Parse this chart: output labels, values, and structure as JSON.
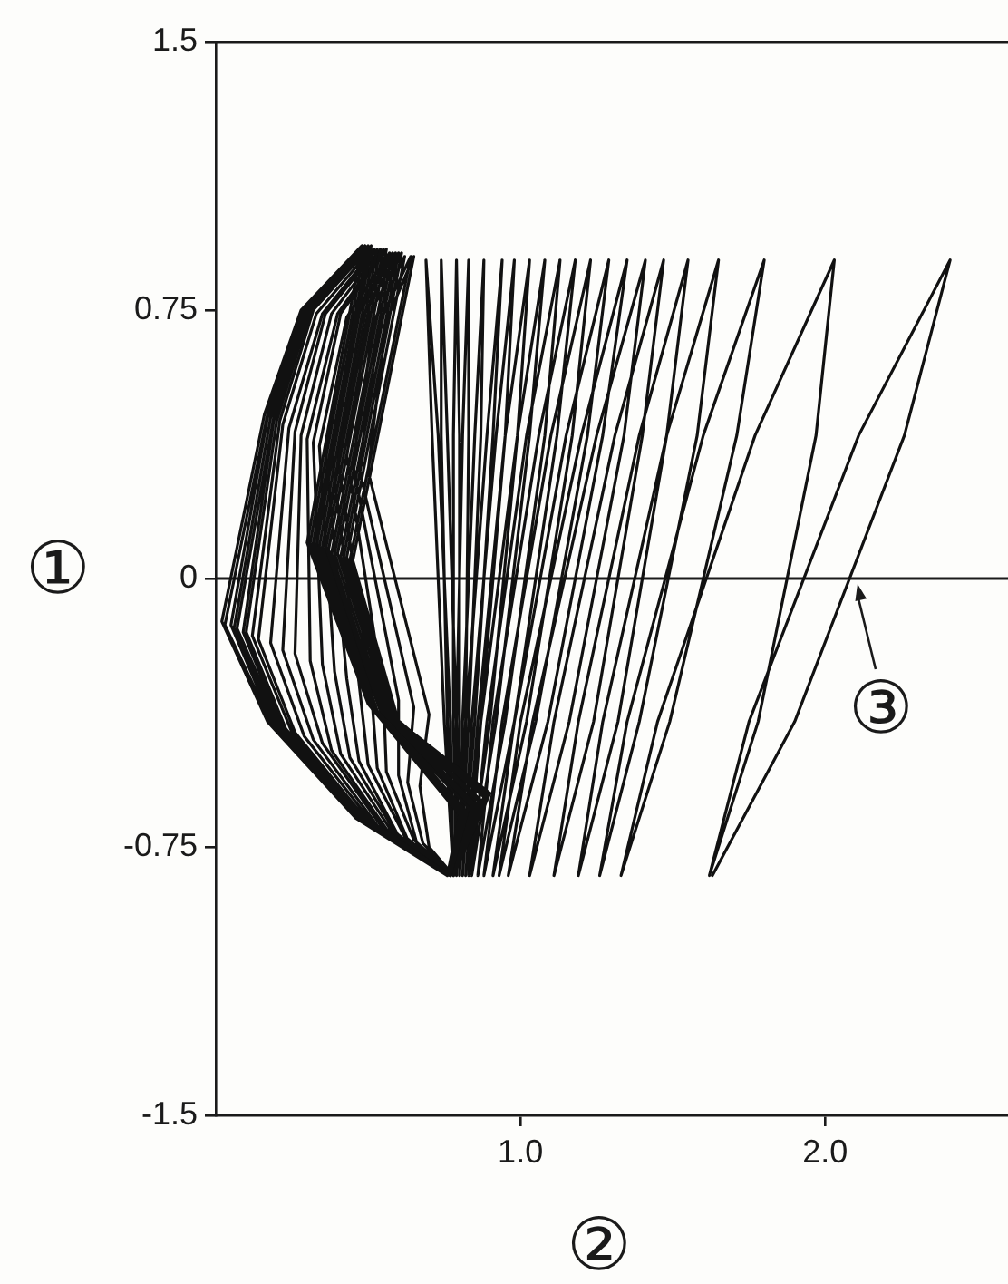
{
  "chart_data": {
    "type": "line",
    "xlabel": "②",
    "ylabel": "①",
    "annotations": [
      {
        "text": "③",
        "x": 2.1,
        "y": 0
      }
    ],
    "series": [
      {
        "color": "#111111",
        "x": [
          0.76,
          0.46,
          0.17,
          0.02,
          0.16,
          0.28,
          0.48,
          0.3,
          0.5,
          0.8,
          0.76,
          0.46,
          0.18,
          0.03,
          0.17,
          0.29,
          0.48,
          0.3,
          0.5,
          0.8,
          0.76,
          0.47,
          0.19,
          0.05,
          0.17,
          0.29,
          0.49,
          0.31,
          0.5,
          0.8,
          0.76,
          0.47,
          0.2,
          0.06,
          0.18,
          0.3,
          0.49,
          0.31,
          0.51,
          0.81,
          0.76,
          0.48,
          0.21,
          0.07,
          0.19,
          0.3,
          0.49,
          0.31,
          0.51,
          0.81,
          0.76,
          0.48,
          0.22,
          0.09,
          0.19,
          0.31,
          0.5,
          0.32,
          0.51,
          0.81,
          0.76,
          0.49,
          0.23,
          0.1,
          0.2,
          0.31,
          0.5,
          0.32,
          0.51,
          0.81,
          0.76,
          0.5,
          0.25,
          0.12,
          0.21,
          0.32,
          0.51,
          0.32,
          0.52,
          0.82,
          0.76,
          0.5,
          0.26,
          0.14,
          0.22,
          0.33,
          0.51,
          0.33,
          0.52,
          0.82,
          0.77,
          0.52,
          0.29,
          0.18,
          0.24,
          0.35,
          0.52,
          0.34,
          0.52,
          0.82,
          0.77,
          0.53,
          0.32,
          0.22,
          0.26,
          0.36,
          0.53,
          0.35,
          0.53,
          0.83,
          0.77
        ],
        "values": [
          -0.83,
          -0.67,
          -0.4,
          -0.12,
          0.46,
          0.75,
          0.93,
          0.1,
          -0.35,
          -0.66,
          -0.83,
          -0.67,
          -0.4,
          -0.13,
          0.46,
          0.75,
          0.93,
          0.1,
          -0.35,
          -0.66,
          -0.83,
          -0.67,
          -0.41,
          -0.13,
          0.45,
          0.75,
          0.93,
          0.1,
          -0.35,
          -0.66,
          -0.83,
          -0.67,
          -0.41,
          -0.14,
          0.45,
          0.75,
          0.93,
          0.1,
          -0.35,
          -0.66,
          -0.83,
          -0.68,
          -0.41,
          -0.14,
          0.45,
          0.75,
          0.93,
          0.1,
          -0.35,
          -0.66,
          -0.83,
          -0.68,
          -0.42,
          -0.15,
          0.44,
          0.75,
          0.93,
          0.1,
          -0.36,
          -0.65,
          -0.83,
          -0.68,
          -0.42,
          -0.15,
          0.44,
          0.75,
          0.93,
          0.09,
          -0.36,
          -0.65,
          -0.83,
          -0.68,
          -0.43,
          -0.16,
          0.44,
          0.75,
          0.93,
          0.09,
          -0.36,
          -0.65,
          -0.83,
          -0.68,
          -0.43,
          -0.17,
          0.43,
          0.74,
          0.92,
          0.09,
          -0.36,
          -0.65,
          -0.83,
          -0.69,
          -0.44,
          -0.18,
          0.42,
          0.74,
          0.92,
          0.09,
          -0.36,
          -0.65,
          -0.83,
          -0.69,
          -0.45,
          -0.2,
          0.41,
          0.74,
          0.92,
          0.09,
          -0.37,
          -0.64,
          -0.83
        ]
      },
      {
        "color": "#111111",
        "x": [
          0.77,
          0.55,
          0.35,
          0.26,
          0.28,
          0.38,
          0.54,
          0.35,
          0.54,
          0.84,
          0.77,
          0.56,
          0.38,
          0.31,
          0.3,
          0.4,
          0.55,
          0.36,
          0.54,
          0.84,
          0.77,
          0.58,
          0.41,
          0.35,
          0.32,
          0.41,
          0.56,
          0.37,
          0.55,
          0.85,
          0.77,
          0.59,
          0.44,
          0.39,
          0.34,
          0.43,
          0.57,
          0.38,
          0.55,
          0.85,
          0.77,
          0.6,
          0.47,
          0.43,
          0.36,
          0.45,
          0.58,
          0.39,
          0.56,
          0.86,
          0.77,
          0.62,
          0.5,
          0.47,
          0.38,
          0.46,
          0.59,
          0.4,
          0.57,
          0.87,
          0.77,
          0.63,
          0.53,
          0.51,
          0.4,
          0.48,
          0.6,
          0.41,
          0.57,
          0.87,
          0.78,
          0.65,
          0.56,
          0.55,
          0.43,
          0.5,
          0.61,
          0.42,
          0.58,
          0.88,
          0.78,
          0.66,
          0.6,
          0.6,
          0.45,
          0.52,
          0.62,
          0.43,
          0.59,
          0.89,
          0.78,
          0.68,
          0.63,
          0.65,
          0.47,
          0.54,
          0.64,
          0.44,
          0.59,
          0.89,
          0.78,
          0.7,
          0.67,
          0.7,
          0.5,
          0.56,
          0.65,
          0.45,
          0.6,
          0.9,
          0.78
        ],
        "values": [
          -0.83,
          -0.7,
          -0.46,
          -0.21,
          0.4,
          0.74,
          0.92,
          0.08,
          -0.37,
          -0.64,
          -0.83,
          -0.7,
          -0.48,
          -0.23,
          0.39,
          0.74,
          0.92,
          0.08,
          -0.37,
          -0.63,
          -0.83,
          -0.71,
          -0.49,
          -0.24,
          0.38,
          0.74,
          0.92,
          0.08,
          -0.37,
          -0.63,
          -0.83,
          -0.71,
          -0.5,
          -0.26,
          0.37,
          0.73,
          0.91,
          0.07,
          -0.38,
          -0.63,
          -0.83,
          -0.72,
          -0.51,
          -0.28,
          0.36,
          0.73,
          0.91,
          0.07,
          -0.38,
          -0.62,
          -0.83,
          -0.72,
          -0.52,
          -0.29,
          0.35,
          0.73,
          0.91,
          0.07,
          -0.38,
          -0.62,
          -0.83,
          -0.73,
          -0.53,
          -0.31,
          0.34,
          0.73,
          0.91,
          0.06,
          -0.39,
          -0.62,
          -0.83,
          -0.73,
          -0.54,
          -0.32,
          0.34,
          0.73,
          0.91,
          0.06,
          -0.39,
          -0.61,
          -0.83,
          -0.74,
          -0.55,
          -0.34,
          0.32,
          0.72,
          0.9,
          0.06,
          -0.39,
          -0.61,
          -0.83,
          -0.74,
          -0.57,
          -0.36,
          0.31,
          0.72,
          0.9,
          0.05,
          -0.4,
          -0.6,
          -0.83,
          -0.75,
          -0.58,
          -0.38,
          0.3,
          0.72,
          0.9,
          0.05,
          -0.4,
          -0.6,
          -0.83
        ]
      },
      {
        "color": "#111111",
        "x": [
          0.78,
          0.75,
          0.71,
          0.69,
          0.73,
          0.77,
          0.78,
          0.76,
          0.74,
          0.74,
          0.76,
          0.79,
          0.79,
          0.78,
          0.78,
          0.79,
          0.8,
          0.8,
          0.79,
          0.79,
          0.81,
          0.83,
          0.83,
          0.82,
          0.8,
          0.81,
          0.85,
          0.88,
          0.87,
          0.83,
          0.8,
          0.82,
          0.89,
          0.94,
          0.91,
          0.85,
          0.81,
          0.84,
          0.92,
          0.98,
          0.95,
          0.87,
          0.82,
          0.86,
          0.95,
          1.03,
          0.99,
          0.9,
          0.83,
          0.87,
          0.99,
          1.08,
          1.03,
          0.92,
          0.84,
          0.89,
          1.02,
          1.13,
          1.08,
          0.95,
          0.86,
          0.91,
          1.06,
          1.18,
          1.12,
          0.98,
          0.88,
          0.94,
          1.1,
          1.23,
          1.17,
          1.02,
          0.91,
          0.98,
          1.15,
          1.29,
          1.22,
          1.05,
          0.93,
          1.0,
          1.2,
          1.35,
          1.27,
          1.09,
          0.96,
          1.04,
          1.25,
          1.41,
          1.34,
          1.16,
          1.03,
          1.11,
          1.31,
          1.47,
          1.4,
          1.24,
          1.11,
          1.19,
          1.39,
          1.55,
          1.48,
          1.32,
          1.19,
          1.27,
          1.48,
          1.65,
          1.58,
          1.39,
          1.26,
          1.35,
          1.6,
          1.8,
          1.71,
          1.49,
          1.33,
          1.45,
          1.77,
          2.03,
          1.97,
          1.78,
          1.62,
          1.75,
          2.11,
          2.41,
          2.26,
          1.9,
          1.63
        ],
        "values": [
          -0.83,
          -0.4,
          0.4,
          0.89,
          0.4,
          -0.4,
          -0.83,
          -0.4,
          0.4,
          0.89,
          0.4,
          -0.4,
          -0.83,
          -0.4,
          0.4,
          0.89,
          0.4,
          -0.4,
          -0.83,
          -0.4,
          0.4,
          0.89,
          0.4,
          -0.4,
          -0.83,
          -0.4,
          0.4,
          0.89,
          0.4,
          -0.4,
          -0.83,
          -0.4,
          0.4,
          0.89,
          0.4,
          -0.4,
          -0.83,
          -0.4,
          0.4,
          0.89,
          0.4,
          -0.4,
          -0.83,
          -0.4,
          0.4,
          0.89,
          0.4,
          -0.4,
          -0.83,
          -0.4,
          0.4,
          0.89,
          0.4,
          -0.4,
          -0.83,
          -0.4,
          0.4,
          0.89,
          0.4,
          -0.4,
          -0.83,
          -0.4,
          0.4,
          0.89,
          0.4,
          -0.4,
          -0.83,
          -0.4,
          0.4,
          0.89,
          0.4,
          -0.4,
          -0.83,
          -0.4,
          0.4,
          0.89,
          0.4,
          -0.4,
          -0.83,
          -0.4,
          0.4,
          0.89,
          0.4,
          -0.4,
          -0.83,
          -0.4,
          0.4,
          0.89,
          0.4,
          -0.4,
          -0.83,
          -0.4,
          0.4,
          0.89,
          0.4,
          -0.4,
          -0.83,
          -0.4,
          0.4,
          0.89,
          0.4,
          -0.4,
          -0.83,
          -0.4,
          0.4,
          0.89,
          0.4,
          -0.4,
          -0.83,
          -0.4,
          0.4,
          0.89,
          0.4,
          -0.4,
          -0.83,
          -0.4,
          0.4,
          0.89,
          0.4,
          -0.4,
          -0.83,
          -0.4,
          0.4,
          0.89,
          0.4,
          -0.4,
          -0.83
        ]
      }
    ],
    "xlim": [
      0,
      2.6
    ],
    "ylim": [
      -1.5,
      1.5
    ],
    "xticks": [
      {
        "value": 1,
        "label": "1.0"
      },
      {
        "value": 2,
        "label": "2.0"
      }
    ],
    "yticks": [
      -1.5,
      -0.75,
      0,
      0.75,
      1.5
    ],
    "ref_lines": [
      {
        "axis": "y",
        "value": 0
      }
    ],
    "line_style": "solid"
  }
}
